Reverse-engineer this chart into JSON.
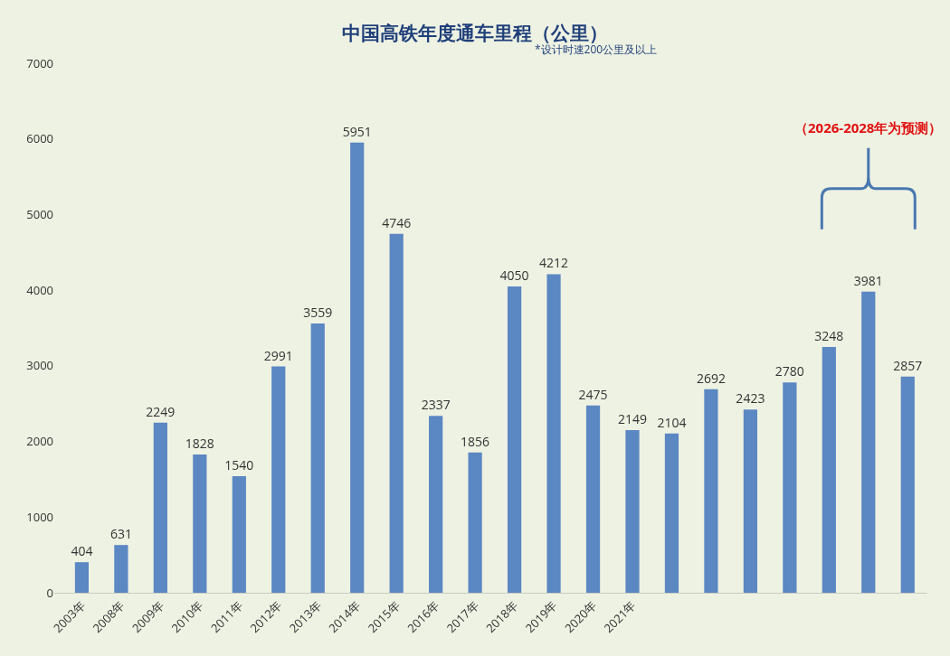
{
  "chart_data": {
    "type": "bar",
    "title": "中国高铁年度通车里程（公里）",
    "subtitle": "*设计时速200公里及以上",
    "annotations": [
      "（2026-2028年为预测）"
    ],
    "categories": [
      "2003年",
      "2008年",
      "2009年",
      "2010年",
      "2011年",
      "2012年",
      "2013年",
      "2014年",
      "2015年",
      "2016年",
      "2017年",
      "2018年",
      "2019年",
      "2020年",
      "2021年",
      null,
      null,
      null,
      null,
      null,
      null,
      null
    ],
    "values": [
      404,
      631,
      2249,
      1828,
      1540,
      2991,
      3559,
      5951,
      4746,
      2337,
      1856,
      4050,
      4212,
      2475,
      2149,
      2104,
      2692,
      2423,
      2780,
      3248,
      3981,
      2857
    ],
    "color": "#5b87c2",
    "ylim": [
      0,
      7000
    ],
    "yticks": [
      0,
      1000,
      2000,
      3000,
      4000,
      5000,
      6000,
      7000
    ],
    "data_labels": true,
    "grid": false,
    "legend": false
  }
}
